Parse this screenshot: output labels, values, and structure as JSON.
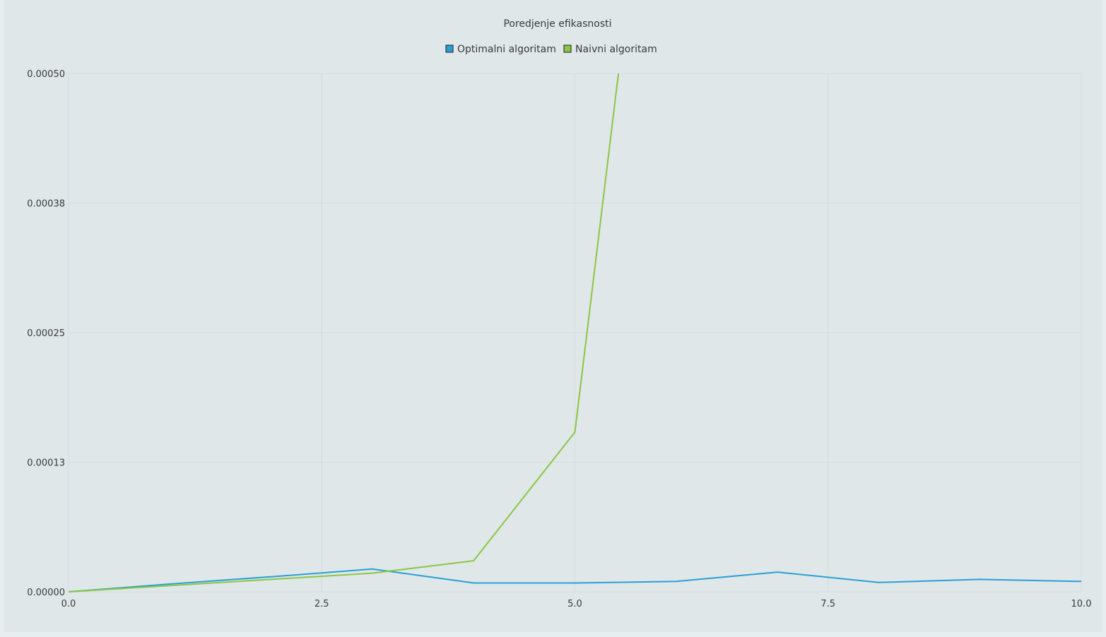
{
  "chart_data": {
    "type": "line",
    "title": "Poredjenje efikasnosti",
    "xlabel": "",
    "ylabel": "",
    "xlim": [
      0,
      10
    ],
    "ylim": [
      0,
      0.0005
    ],
    "x_ticks": [
      "0.0",
      "2.5",
      "5.0",
      "7.5",
      "10.0"
    ],
    "y_ticks": [
      "0.00000",
      "0.00013",
      "0.00025",
      "0.00038",
      "0.00050"
    ],
    "grid": true,
    "legend_position": "top-center",
    "series": [
      {
        "name": "Optimalni algoritam",
        "color": "#2a9fd6",
        "points": [
          [
            0,
            0
          ],
          [
            1,
            7.5e-06
          ],
          [
            2,
            1.45e-05
          ],
          [
            3,
            2.2e-05
          ],
          [
            4,
            8.5e-06
          ],
          [
            5,
            8.5e-06
          ],
          [
            6,
            1e-05
          ],
          [
            7,
            1.9e-05
          ],
          [
            8,
            9e-06
          ],
          [
            9,
            1.2e-05
          ],
          [
            10,
            1e-05
          ]
        ]
      },
      {
        "name": "Naivni algoritam",
        "color": "#8cc641",
        "points": [
          [
            0,
            0
          ],
          [
            1,
            6e-06
          ],
          [
            2,
            1.2e-05
          ],
          [
            3,
            1.8e-05
          ],
          [
            4,
            3e-05
          ],
          [
            5,
            0.000154
          ],
          [
            5.43,
            0.0005
          ]
        ]
      }
    ]
  }
}
